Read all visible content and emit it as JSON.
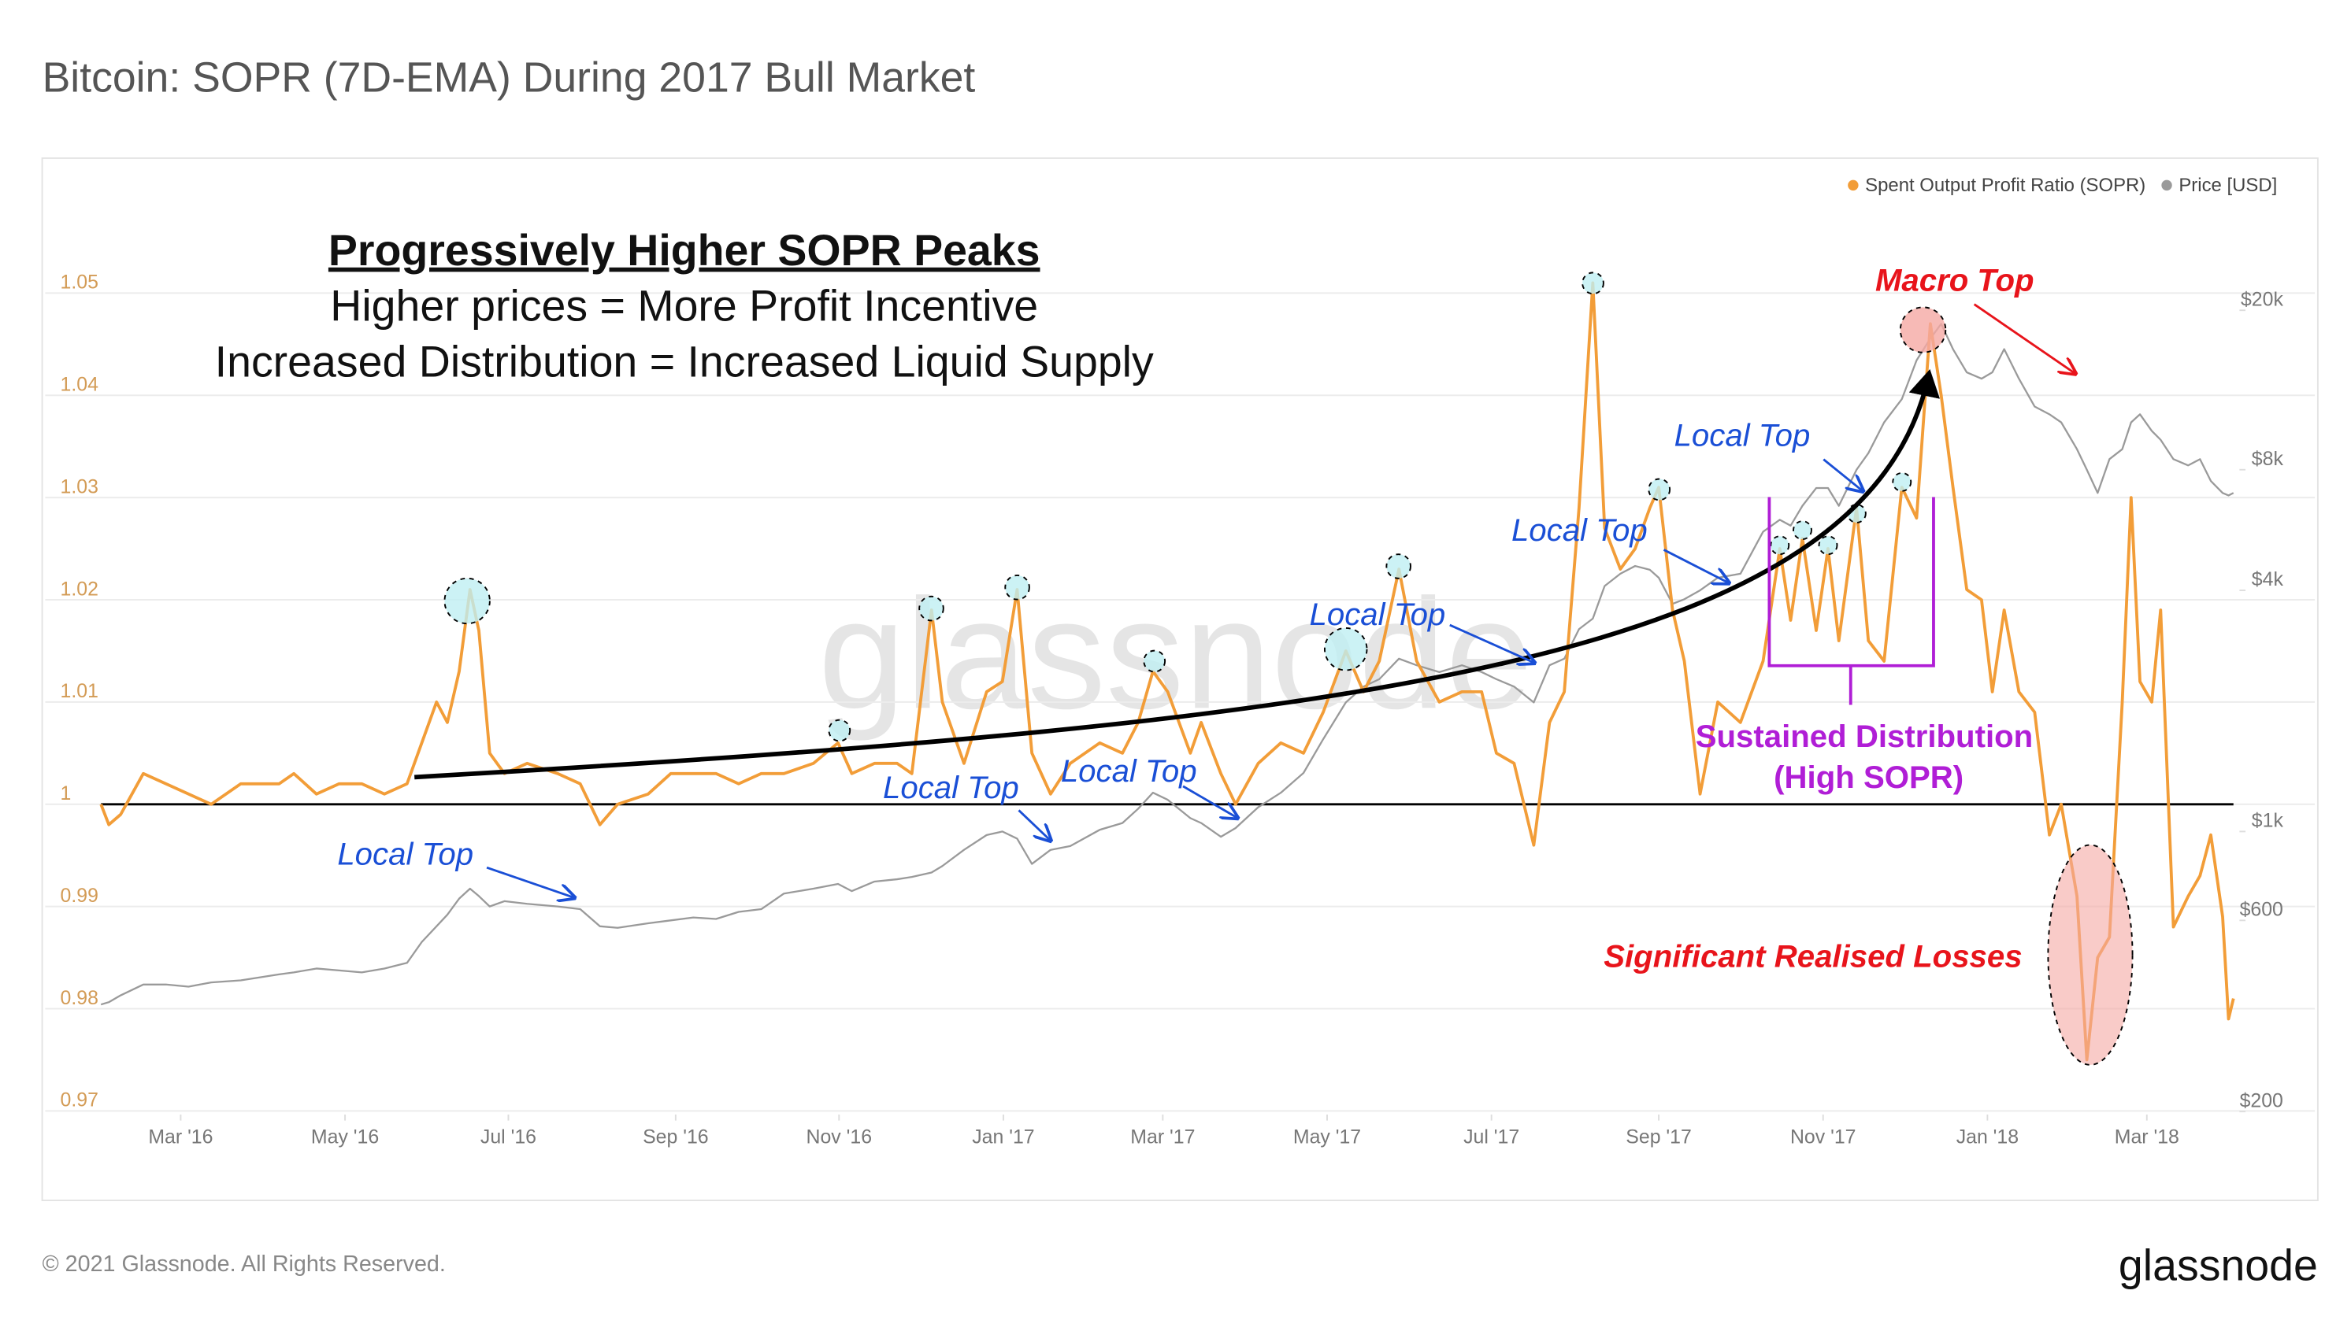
{
  "title": "Bitcoin: SOPR (7D-EMA) During 2017 Bull Market",
  "chart_data": {
    "type": "line",
    "x": [
      2016.083,
      2016.091,
      2016.103,
      2016.126,
      2016.149,
      2016.172,
      2016.195,
      2016.225,
      2016.264,
      2016.279,
      2016.302,
      2016.325,
      2016.348,
      2016.371,
      2016.394,
      2016.409,
      2016.424,
      2016.435,
      2016.447,
      2016.458,
      2016.467,
      2016.478,
      2016.493,
      2016.516,
      2016.547,
      2016.57,
      2016.59,
      2016.608,
      2016.639,
      2016.662,
      2016.685,
      2016.708,
      2016.731,
      2016.754,
      2016.777,
      2016.807,
      2016.832,
      2016.846,
      2016.869,
      2016.892,
      2016.907,
      2016.927,
      2016.938,
      2016.96,
      2016.983,
      2016.999,
      2017.014,
      2017.029,
      2017.048,
      2017.068,
      2017.098,
      2017.121,
      2017.137,
      2017.152,
      2017.167,
      2017.19,
      2017.201,
      2017.221,
      2017.236,
      2017.259,
      2017.282,
      2017.305,
      2017.325,
      2017.348,
      2017.366,
      2017.382,
      2017.402,
      2017.42,
      2017.443,
      2017.466,
      2017.486,
      2017.501,
      2017.519,
      2017.539,
      2017.555,
      2017.57,
      2017.585,
      2017.599,
      2017.611,
      2017.627,
      2017.642,
      2017.657,
      2017.666,
      2017.68,
      2017.692,
      2017.708,
      2017.726,
      2017.749,
      2017.772,
      2017.789,
      2017.8,
      2017.812,
      2017.826,
      2017.838,
      2017.849,
      2017.867,
      2017.879,
      2017.895,
      2017.913,
      2017.928,
      2017.942,
      2017.953,
      2017.965,
      2017.979,
      2017.994,
      2018.005,
      2018.017,
      2018.032,
      2018.048,
      2018.063,
      2018.075,
      2018.091,
      2018.101,
      2018.112,
      2018.124,
      2018.137,
      2018.146,
      2018.155,
      2018.167,
      2018.176,
      2018.189,
      2018.204,
      2018.216,
      2018.227,
      2018.239,
      2018.245,
      2018.25
    ],
    "series": [
      {
        "name": "Spent Output Profit Ratio (SOPR)",
        "color": "#f29d38",
        "values": [
          1.0,
          0.998,
          0.999,
          1.003,
          1.002,
          1.001,
          1.0,
          1.002,
          1.002,
          1.003,
          1.001,
          1.002,
          1.002,
          1.001,
          1.002,
          1.006,
          1.01,
          1.008,
          1.013,
          1.021,
          1.017,
          1.005,
          1.003,
          1.004,
          1.003,
          1.002,
          0.998,
          1.0,
          1.001,
          1.003,
          1.003,
          1.003,
          1.002,
          1.003,
          1.003,
          1.004,
          1.006,
          1.003,
          1.004,
          1.004,
          1.003,
          1.019,
          1.01,
          1.004,
          1.011,
          1.012,
          1.021,
          1.005,
          1.001,
          1.004,
          1.006,
          1.005,
          1.008,
          1.013,
          1.011,
          1.005,
          1.008,
          1.003,
          1.0,
          1.004,
          1.006,
          1.005,
          1.009,
          1.015,
          1.011,
          1.014,
          1.023,
          1.014,
          1.01,
          1.011,
          1.011,
          1.005,
          1.004,
          0.996,
          1.008,
          1.011,
          1.029,
          1.051,
          1.027,
          1.023,
          1.025,
          1.029,
          1.031,
          1.019,
          1.014,
          1.001,
          1.01,
          1.008,
          1.014,
          1.025,
          1.018,
          1.026,
          1.017,
          1.025,
          1.016,
          1.029,
          1.016,
          1.014,
          1.031,
          1.028,
          1.047,
          1.04,
          1.031,
          1.021,
          1.02,
          1.011,
          1.019,
          1.011,
          1.009,
          0.997,
          1.0,
          0.991,
          0.975,
          0.985,
          0.987,
          1.01,
          1.03,
          1.012,
          1.01,
          1.019,
          0.988,
          0.991,
          0.993,
          0.997,
          0.989,
          0.979,
          0.981
        ]
      },
      {
        "name": "Price [USD]",
        "color": "#9a9a9a",
        "axis": "y2",
        "values": [
          370,
          375,
          390,
          415,
          415,
          410,
          420,
          425,
          440,
          445,
          455,
          450,
          445,
          455,
          470,
          530,
          580,
          620,
          680,
          720,
          690,
          650,
          670,
          660,
          650,
          640,
          580,
          575,
          590,
          600,
          610,
          605,
          630,
          640,
          700,
          720,
          740,
          710,
          750,
          760,
          770,
          790,
          820,
          900,
          980,
          1000,
          960,
          830,
          900,
          920,
          1010,
          1050,
          1140,
          1250,
          1200,
          1080,
          1050,
          970,
          1020,
          1150,
          1250,
          1400,
          1700,
          2100,
          2300,
          2400,
          2700,
          2600,
          2500,
          2600,
          2500,
          2400,
          2300,
          2100,
          2600,
          2700,
          3200,
          3400,
          4100,
          4400,
          4600,
          4500,
          4300,
          3700,
          3800,
          4000,
          4300,
          4400,
          5600,
          6000,
          5800,
          6500,
          7200,
          7200,
          6500,
          8000,
          8800,
          10500,
          12000,
          15000,
          17000,
          18500,
          16000,
          14000,
          13500,
          14000,
          16000,
          13500,
          11500,
          11000,
          10500,
          9000,
          8000,
          7000,
          8500,
          9000,
          10500,
          11000,
          10000,
          9500,
          8500,
          8200,
          8500,
          7500,
          7000,
          6900,
          7000
        ]
      }
    ],
    "xlim": [
      2016.083,
      2018.25
    ],
    "xticks": [
      {
        "value": 2016.164,
        "label": "Mar '16"
      },
      {
        "value": 2016.331,
        "label": "May '16"
      },
      {
        "value": 2016.497,
        "label": "Jul '16"
      },
      {
        "value": 2016.667,
        "label": "Sep '16"
      },
      {
        "value": 2016.833,
        "label": "Nov '16"
      },
      {
        "value": 2017.0,
        "label": "Jan '17"
      },
      {
        "value": 2017.162,
        "label": "Mar '17"
      },
      {
        "value": 2017.329,
        "label": "May '17"
      },
      {
        "value": 2017.496,
        "label": "Jul '17"
      },
      {
        "value": 2017.666,
        "label": "Sep '17"
      },
      {
        "value": 2017.833,
        "label": "Nov '17"
      },
      {
        "value": 2018.0,
        "label": "Jan '18"
      },
      {
        "value": 2018.162,
        "label": "Mar '18"
      }
    ],
    "ylim": [
      0.97,
      1.05
    ],
    "yticks": [
      0.97,
      0.98,
      0.99,
      1,
      1.01,
      1.02,
      1.03,
      1.04,
      1.05
    ],
    "y2lim": [
      200,
      20000
    ],
    "y2log": true,
    "y2ticks": [
      {
        "value": 200,
        "label": "$200"
      },
      {
        "value": 600,
        "label": "$600"
      },
      {
        "value": 1000,
        "label": "$1k"
      },
      {
        "value": 4000,
        "label": "$4k"
      },
      {
        "value": 8000,
        "label": "$8k"
      },
      {
        "value": 20000,
        "label": "$20k"
      }
    ],
    "hline": 1,
    "grid": true,
    "legend": "top-right",
    "annotations": [
      "Progressively Higher SOPR Peaks",
      "Higher prices = More Profit Incentive",
      "Increased Distribution = Increased Liquid Supply",
      "Macro Top",
      "Local Top",
      "Local Top",
      "Local Top",
      "Local Top",
      "Local Top",
      "Local Top",
      "Sustained Distribution",
      "(High SOPR)",
      "Significant Realised Losses"
    ],
    "watermark": "glassnode"
  },
  "footer": {
    "copyright": "© 2021 Glassnode. All Rights Reserved.",
    "logo": "glassnode"
  }
}
